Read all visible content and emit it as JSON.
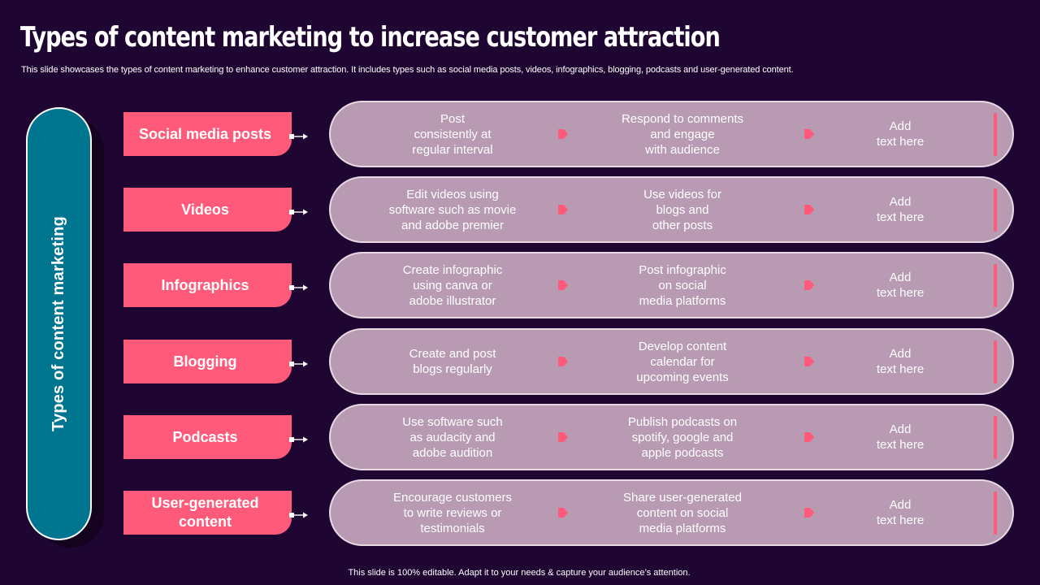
{
  "title": "Types of content marketing to increase customer attraction",
  "subtitle": "This slide showcases the types of content marketing to enhance customer attraction. It includes types such as social media posts, videos, infographics, blogging, podcasts and user-generated content.",
  "side_label": "Types of content marketing",
  "rows": [
    {
      "category": "Social media posts",
      "step1": "Post\nconsistently at\nregular interval",
      "step2": "Respond to comments\nand engage\nwith audience",
      "step3": "Add\ntext here"
    },
    {
      "category": "Videos",
      "step1": "Edit videos using\nsoftware such as movie\nand adobe premier",
      "step2": "Use videos for\nblogs and\nother posts",
      "step3": "Add\ntext here"
    },
    {
      "category": "Infographics",
      "step1": "Create infographic\nusing canva or\nadobe illustrator",
      "step2": "Post infographic\non social\nmedia platforms",
      "step3": "Add\ntext here"
    },
    {
      "category": "Blogging",
      "step1": "Create and post\nblogs regularly",
      "step2": "Develop content\ncalendar for\nupcoming events",
      "step3": "Add\ntext here"
    },
    {
      "category": "Podcasts",
      "step1": "Use software such\nas audacity and\nadobe audition",
      "step2": "Publish podcasts on\nspotify, google and\napple podcasts",
      "step3": "Add\ntext here"
    },
    {
      "category": "User-generated\ncontent",
      "step1": "Encourage customers\nto write reviews or\ntestimonials",
      "step2": "Share user-generated\ncontent on social\nmedia platforms",
      "step3": "Add\ntext here"
    }
  ],
  "footer": "This slide is 100% editable. Adapt it to your needs & capture your audience’s attention.",
  "colors": {
    "background": "#1f0531",
    "accent": "#ff5a79",
    "teal": "#00758f",
    "pill": "#b89ab2"
  }
}
